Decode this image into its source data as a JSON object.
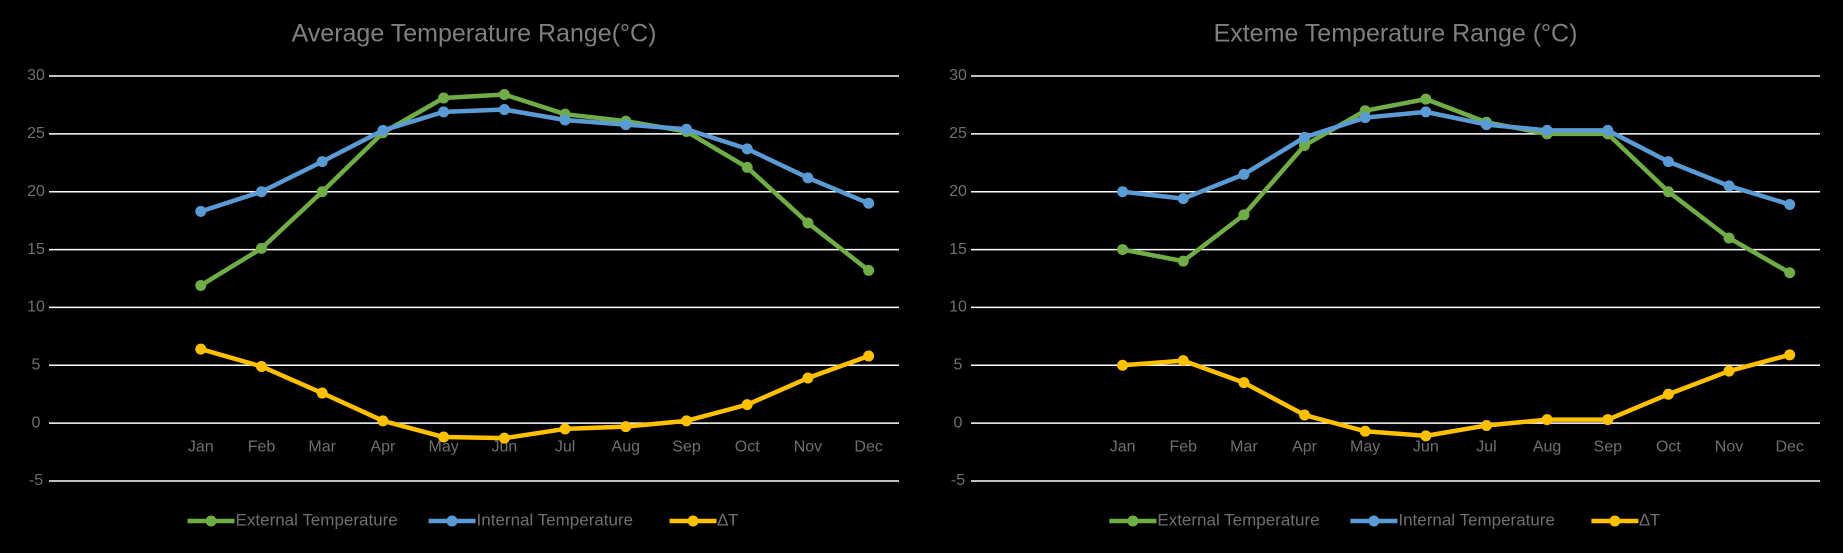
{
  "chart_data": [
    {
      "type": "line",
      "title": "Average Temperature Range(°C)",
      "categories": [
        null,
        null,
        "Jan",
        "Feb",
        "Mar",
        "Apr",
        "May",
        "Jun",
        "Jul",
        "Aug",
        "Sep",
        "Oct",
        "Nov",
        "Dec"
      ],
      "series": [
        {
          "name": "External Temperature",
          "color": "#70ad47",
          "values": [
            null,
            null,
            11.9,
            15.1,
            20,
            25.1,
            28.1,
            28.4,
            26.7,
            26.1,
            25.2,
            22.1,
            17.3,
            13.2
          ]
        },
        {
          "name": "Internal Temperature",
          "color": "#5b9bd5",
          "values": [
            null,
            null,
            18.3,
            20,
            22.6,
            25.3,
            26.9,
            27.1,
            26.2,
            25.8,
            25.4,
            23.7,
            21.2,
            19
          ]
        },
        {
          "name": "∆T",
          "color": "#ffc000",
          "values": [
            null,
            null,
            6.4,
            4.9,
            2.6,
            0.2,
            -1.2,
            -1.3,
            -0.5,
            -0.3,
            0.2,
            1.6,
            3.9,
            5.8
          ]
        }
      ],
      "ylim": [
        -5,
        30
      ],
      "yticks": [
        -5,
        0,
        5,
        10,
        15,
        20,
        25,
        30
      ],
      "grid": true,
      "legend": "bottom"
    },
    {
      "type": "line",
      "title": "Exteme Temperature Range (°C)",
      "categories": [
        null,
        null,
        "Jan",
        "Feb",
        "Mar",
        "Apr",
        "May",
        "Jun",
        "Jul",
        "Aug",
        "Sep",
        "Oct",
        "Nov",
        "Dec"
      ],
      "series": [
        {
          "name": "External Temperature",
          "color": "#70ad47",
          "values": [
            null,
            null,
            15,
            14,
            18,
            24,
            27,
            28,
            26,
            25,
            25,
            20,
            16,
            13
          ]
        },
        {
          "name": "Internal Temperature",
          "color": "#5b9bd5",
          "values": [
            null,
            null,
            20,
            19.4,
            21.5,
            24.7,
            26.4,
            26.9,
            25.8,
            25.3,
            25.3,
            22.6,
            20.5,
            18.9
          ]
        },
        {
          "name": "∆T",
          "color": "#ffc000",
          "values": [
            null,
            null,
            5,
            5.4,
            3.5,
            0.7,
            -0.7,
            -1.1,
            -0.2,
            0.3,
            0.3,
            2.5,
            4.5,
            5.9
          ]
        }
      ],
      "ylim": [
        -5,
        30
      ],
      "yticks": [
        -5,
        0,
        5,
        10,
        15,
        20,
        25,
        30
      ],
      "grid": true,
      "legend": "bottom"
    }
  ]
}
